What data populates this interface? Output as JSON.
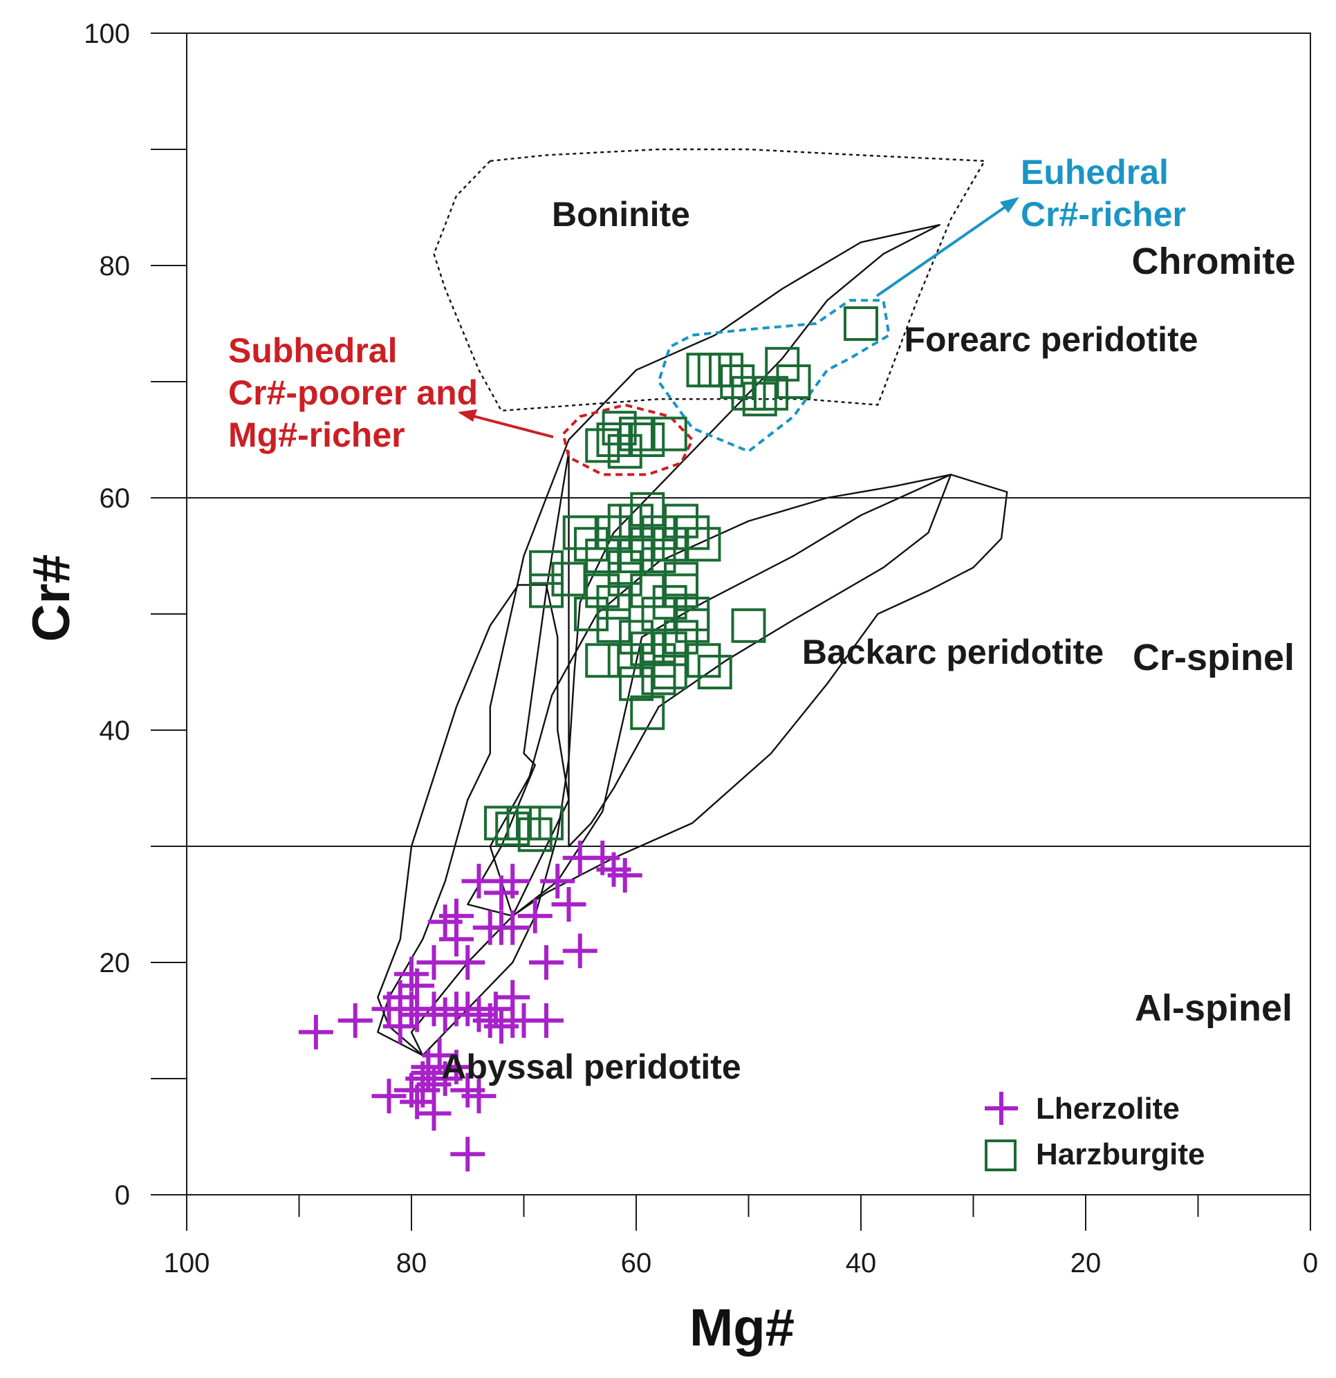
{
  "chart_data": {
    "type": "scatter",
    "title": "",
    "xlabel": "Mg#",
    "ylabel": "Cr#",
    "xlim": [
      100,
      0
    ],
    "ylim": [
      0,
      100
    ],
    "x_ticks": [
      100,
      80,
      60,
      40,
      20,
      0
    ],
    "y_ticks": [
      0,
      20,
      40,
      60,
      80,
      100
    ],
    "x_tick_labels": [
      "100",
      "80",
      "60",
      "40",
      "20",
      "0"
    ],
    "y_tick_labels": [
      "0",
      "20",
      "40",
      "60",
      "80",
      "100"
    ],
    "grid": false,
    "legend_position": "bottom-right",
    "colors": {
      "lherzolite": "#a822c9",
      "harzburgite": "#1b6b34",
      "subhedral": "#cc1f24",
      "euhedral": "#1a95c4",
      "field": "#111111"
    },
    "zone_boundaries": [
      30,
      60
    ],
    "zones": [
      {
        "label": "Chromite",
        "x": 19,
        "y": 80.5
      },
      {
        "label": "Cr-spinel",
        "x": 19,
        "y": 46.3
      },
      {
        "label": "Al-spinel",
        "x": 19,
        "y": 16.2
      }
    ],
    "series": [
      {
        "name": "Lherzolite",
        "marker": "plus",
        "points": [
          [
            88.5,
            14
          ],
          [
            85,
            15
          ],
          [
            82,
            16
          ],
          [
            81,
            14.5
          ],
          [
            81,
            17
          ],
          [
            80,
            16
          ],
          [
            79.5,
            18
          ],
          [
            79.5,
            15.5
          ],
          [
            78,
            16
          ],
          [
            77,
            15.5
          ],
          [
            76,
            16
          ],
          [
            75,
            16
          ],
          [
            74,
            15.5
          ],
          [
            73,
            15
          ],
          [
            72.5,
            16
          ],
          [
            72,
            14.5
          ],
          [
            71,
            17
          ],
          [
            71,
            15
          ],
          [
            70,
            15
          ],
          [
            68,
            15
          ],
          [
            80,
            19
          ],
          [
            78,
            20
          ],
          [
            77,
            23.5
          ],
          [
            76,
            22
          ],
          [
            76,
            24
          ],
          [
            75,
            20
          ],
          [
            74,
            27
          ],
          [
            73,
            23
          ],
          [
            72,
            26
          ],
          [
            72,
            23
          ],
          [
            71,
            27
          ],
          [
            71,
            23
          ],
          [
            69,
            24
          ],
          [
            68,
            20
          ],
          [
            67,
            27
          ],
          [
            66,
            25
          ],
          [
            65,
            29
          ],
          [
            65,
            21
          ],
          [
            63,
            29
          ],
          [
            62,
            28
          ],
          [
            61,
            27.5
          ],
          [
            82,
            8.5
          ],
          [
            80,
            9
          ],
          [
            79.5,
            8
          ],
          [
            79,
            10
          ],
          [
            78.5,
            11
          ],
          [
            78,
            9.5
          ],
          [
            78,
            7
          ],
          [
            77.5,
            12
          ],
          [
            77,
            10
          ],
          [
            76,
            11
          ],
          [
            75,
            9
          ],
          [
            74,
            8.5
          ],
          [
            75,
            3.5
          ],
          [
            78.5,
            10.5
          ],
          [
            79,
            9
          ]
        ]
      },
      {
        "name": "Harzburgite",
        "marker": "open-square",
        "points": [
          [
            72,
            32
          ],
          [
            71,
            31.5
          ],
          [
            70,
            32
          ],
          [
            69,
            31
          ],
          [
            68,
            32
          ],
          [
            62,
            65
          ],
          [
            61,
            64
          ],
          [
            60,
            65.5
          ],
          [
            59,
            65
          ],
          [
            57,
            65.5
          ],
          [
            63,
            64.5
          ],
          [
            61.5,
            66
          ],
          [
            54,
            71
          ],
          [
            53,
            71
          ],
          [
            52,
            71
          ],
          [
            51,
            70
          ],
          [
            50,
            69
          ],
          [
            49,
            68.5
          ],
          [
            48,
            69
          ],
          [
            47,
            71.5
          ],
          [
            46,
            70
          ],
          [
            40,
            75
          ],
          [
            68,
            54
          ],
          [
            68,
            52
          ],
          [
            66,
            53
          ],
          [
            65,
            57
          ],
          [
            64,
            56
          ],
          [
            63,
            55
          ],
          [
            62,
            57
          ],
          [
            61,
            54
          ],
          [
            60,
            58
          ],
          [
            59,
            59
          ],
          [
            58,
            57
          ],
          [
            57,
            56
          ],
          [
            56,
            58
          ],
          [
            55,
            57
          ],
          [
            54,
            56
          ],
          [
            63,
            52
          ],
          [
            62,
            51
          ],
          [
            61,
            53
          ],
          [
            60,
            55
          ],
          [
            59,
            52
          ],
          [
            58,
            50
          ],
          [
            57,
            51
          ],
          [
            56,
            53
          ],
          [
            55,
            50
          ],
          [
            64,
            50
          ],
          [
            62,
            49
          ],
          [
            60,
            48
          ],
          [
            59,
            47
          ],
          [
            58,
            46
          ],
          [
            57,
            45
          ],
          [
            56,
            48
          ],
          [
            55,
            49
          ],
          [
            50,
            49
          ],
          [
            54,
            46
          ],
          [
            53,
            45
          ],
          [
            60,
            44
          ],
          [
            59,
            41.5
          ],
          [
            58,
            44.5
          ],
          [
            63,
            46
          ],
          [
            61,
            46
          ],
          [
            57,
            47
          ],
          [
            56,
            52
          ],
          [
            61,
            58
          ],
          [
            59,
            56
          ],
          [
            58,
            55
          ]
        ]
      }
    ],
    "fields": [
      {
        "name": "Boninite",
        "style": "dotted",
        "polygon": [
          [
            73,
            89
          ],
          [
            68,
            89.5
          ],
          [
            58,
            90
          ],
          [
            50,
            90
          ],
          [
            40,
            89.5
          ],
          [
            29,
            89
          ],
          [
            32,
            84
          ],
          [
            35,
            77
          ],
          [
            38.5,
            68
          ],
          [
            45,
            68.5
          ],
          [
            50,
            68.5
          ],
          [
            58,
            68.5
          ],
          [
            65,
            68
          ],
          [
            72,
            67.5
          ],
          [
            74,
            71
          ],
          [
            77,
            78
          ],
          [
            78,
            81
          ],
          [
            76,
            86
          ]
        ]
      },
      {
        "name": "Forearc peridotite",
        "style": "solid",
        "polygon": [
          [
            33,
            83.5
          ],
          [
            40,
            82
          ],
          [
            47,
            78
          ],
          [
            53,
            74
          ],
          [
            60,
            71
          ],
          [
            66,
            65
          ],
          [
            70,
            55
          ],
          [
            73,
            42
          ],
          [
            73,
            38
          ],
          [
            75,
            34
          ],
          [
            77,
            27
          ],
          [
            79,
            22
          ],
          [
            82,
            17
          ],
          [
            83,
            14
          ],
          [
            79,
            12
          ],
          [
            77,
            14
          ],
          [
            71,
            20
          ],
          [
            69,
            24
          ],
          [
            67,
            31
          ],
          [
            66,
            37.5
          ],
          [
            65.5,
            45
          ],
          [
            65,
            51
          ],
          [
            62,
            57
          ],
          [
            57,
            62
          ],
          [
            52,
            67
          ],
          [
            47,
            72
          ],
          [
            43,
            77
          ],
          [
            38,
            81
          ]
        ]
      },
      {
        "name": "Abyssal peridotite",
        "style": "solid",
        "polygon": [
          [
            83,
            17
          ],
          [
            81,
            22
          ],
          [
            80,
            30
          ],
          [
            78,
            36
          ],
          [
            76,
            42
          ],
          [
            73,
            49
          ],
          [
            70.5,
            52.5
          ],
          [
            68,
            52.5
          ],
          [
            67,
            48
          ],
          [
            67,
            40
          ],
          [
            66,
            34
          ],
          [
            69,
            28
          ],
          [
            71,
            24
          ],
          [
            75,
            20
          ],
          [
            80,
            14
          ],
          [
            79,
            12
          ],
          [
            82,
            14.5
          ]
        ]
      },
      {
        "name": "Backarc peridotite",
        "style": "solid",
        "polygon": [
          [
            32,
            62
          ],
          [
            27,
            60.5
          ],
          [
            27.5,
            56.5
          ],
          [
            30,
            54
          ],
          [
            34,
            52
          ],
          [
            38.5,
            50
          ],
          [
            43,
            44
          ],
          [
            48,
            38
          ],
          [
            55,
            32
          ],
          [
            62,
            29
          ],
          [
            68,
            26
          ],
          [
            71,
            24
          ],
          [
            73,
            30
          ],
          [
            69.5,
            36
          ],
          [
            67.5,
            43
          ],
          [
            63.5,
            50
          ],
          [
            58,
            54.5
          ],
          [
            50,
            58
          ],
          [
            43,
            60
          ],
          [
            37,
            61
          ]
        ]
      },
      {
        "name": "Inner field",
        "style": "solid",
        "polygon": [
          [
            66,
            64
          ],
          [
            68,
            52
          ],
          [
            70,
            38
          ],
          [
            69,
            37
          ],
          [
            72,
            30
          ],
          [
            75,
            25
          ],
          [
            71,
            24
          ],
          [
            67,
            27
          ],
          [
            63,
            33
          ],
          [
            59.5,
            48
          ],
          [
            54,
            51
          ],
          [
            46,
            55
          ],
          [
            40,
            58.5
          ],
          [
            32,
            62
          ],
          [
            34,
            57
          ],
          [
            38,
            54
          ],
          [
            46,
            49.5
          ],
          [
            52,
            46
          ],
          [
            58,
            42
          ],
          [
            62,
            35
          ],
          [
            64,
            32
          ],
          [
            66,
            30
          ]
        ]
      }
    ],
    "region_labels": [
      {
        "label": "Boninite",
        "x": 60,
        "y": 84.5
      },
      {
        "label": "Forearc peridotite",
        "x": 29.5,
        "y": 73.5
      },
      {
        "label": "Backarc peridotite",
        "x": 38,
        "y": 46.5
      },
      {
        "label": "Abyssal peridotite",
        "x": 65,
        "y": 11.5
      }
    ],
    "annotations": [
      {
        "name": "subhedral",
        "lines": [
          "Subhedral",
          "Cr#-poorer and",
          "Mg#-richer"
        ]
      },
      {
        "name": "euhedral",
        "lines": [
          "Euhedral",
          "Cr#-richer"
        ]
      }
    ],
    "highlight_groups": [
      {
        "name": "subhedral",
        "polygon": [
          [
            65,
            67
          ],
          [
            61,
            68
          ],
          [
            57,
            67
          ],
          [
            55,
            65
          ],
          [
            56,
            63
          ],
          [
            59,
            62
          ],
          [
            63,
            62
          ],
          [
            66,
            63.5
          ],
          [
            66.5,
            65.5
          ]
        ]
      },
      {
        "name": "euhedral",
        "polygon": [
          [
            55,
            74
          ],
          [
            50,
            74.5
          ],
          [
            44,
            75
          ],
          [
            41,
            77
          ],
          [
            38,
            77
          ],
          [
            37.5,
            74
          ],
          [
            41,
            72
          ],
          [
            43,
            71
          ],
          [
            46,
            67
          ],
          [
            50,
            64
          ],
          [
            55,
            66
          ],
          [
            58,
            70
          ],
          [
            57,
            73
          ]
        ]
      }
    ]
  }
}
